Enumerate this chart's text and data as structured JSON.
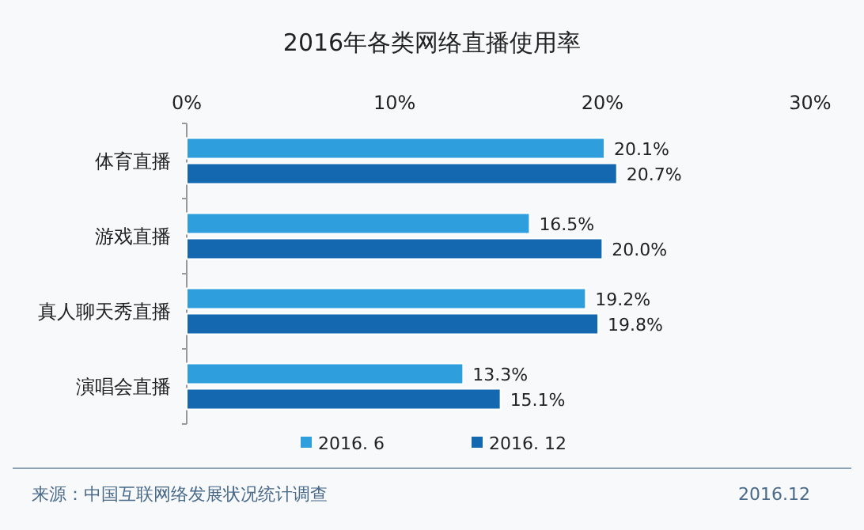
{
  "chart_data": {
    "type": "bar",
    "orientation": "horizontal",
    "title": "2016年各类网络直播使用率",
    "categories": [
      "体育直播",
      "游戏直播",
      "真人聊天秀直播",
      "演唱会直播"
    ],
    "series": [
      {
        "name": "2016. 6",
        "color": "#2e9fdc",
        "values": [
          20.1,
          16.5,
          19.2,
          13.3
        ],
        "value_labels": [
          "20.1%",
          "16.5%",
          "19.2%",
          "13.3%"
        ]
      },
      {
        "name": "2016. 12",
        "color": "#1368b0",
        "values": [
          20.7,
          20.0,
          19.8,
          15.1
        ],
        "value_labels": [
          "20.7%",
          "20.0%",
          "19.8%",
          "15.1%"
        ]
      }
    ],
    "xlim": [
      0,
      30
    ],
    "xticks": [
      {
        "value": 0,
        "label": "0%"
      },
      {
        "value": 10,
        "label": "10%"
      },
      {
        "value": 20,
        "label": "20%"
      },
      {
        "value": 30,
        "label": "30%"
      }
    ],
    "legend": "bottom",
    "annotations": [
      "来源：中国互联网络发展状况统计调查",
      "2016.12"
    ]
  }
}
